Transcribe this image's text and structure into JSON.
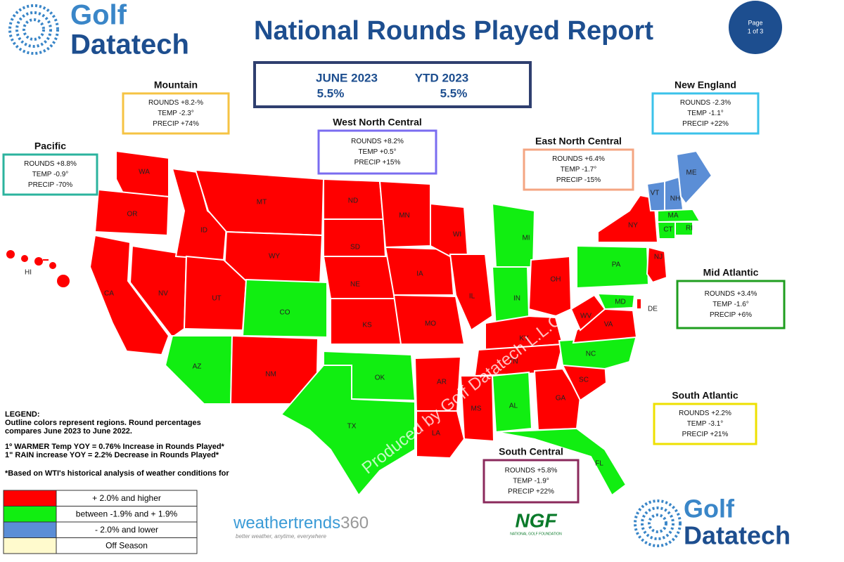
{
  "header": {
    "logo": [
      "Golf",
      "Datatech"
    ],
    "title": "National Rounds Played Report",
    "page": [
      "Page",
      "1 of 3"
    ]
  },
  "summary": {
    "labels": [
      "JUNE 2023",
      "YTD  2023"
    ],
    "values": [
      "5.5%",
      "5.5%"
    ]
  },
  "regions": [
    {
      "name": "Mountain",
      "lines": [
        "ROUNDS +8.2-%",
        "TEMP -2.3°",
        "PRECIP +74%"
      ],
      "color": "#f5c343"
    },
    {
      "name": "Pacific",
      "lines": [
        "ROUNDS +8.8%",
        "TEMP -0.9°",
        "PRECIP -70%"
      ],
      "color": "#2bb39e"
    },
    {
      "name": "West North Central",
      "lines": [
        "ROUNDS +8.2%",
        "TEMP +0.5°",
        "PRECIP +15%"
      ],
      "color": "#7a6cf0"
    },
    {
      "name": "East North Central",
      "lines": [
        "ROUNDS +6.4%",
        "TEMP -1.7°",
        "PRECIP -15%"
      ],
      "color": "#f4a582"
    },
    {
      "name": "New England",
      "lines": [
        "ROUNDS -2.3%",
        "TEMP -1.1°",
        "PRECIP +22%"
      ],
      "color": "#3ac2ea"
    },
    {
      "name": "Mid Atlantic",
      "lines": [
        "ROUNDS +3.4%",
        "TEMP -1.6°",
        "PRECIP +6%"
      ],
      "color": "#1f9e1f"
    },
    {
      "name": "South Atlantic",
      "lines": [
        "ROUNDS +2.2%",
        "TEMP -3.1°",
        "PRECIP +21%"
      ],
      "color": "#eee000"
    },
    {
      "name": "South Central",
      "lines": [
        "ROUNDS +5.8%",
        "TEMP -1.9°",
        "PRECIP +22%"
      ],
      "color": "#8b2a5c"
    }
  ],
  "states": [
    {
      "label": "WA",
      "color": "#ff0000"
    },
    {
      "label": "OR",
      "color": "#ff0000"
    },
    {
      "label": "CA",
      "color": "#ff0000"
    },
    {
      "label": "NV",
      "color": "#ff0000"
    },
    {
      "label": "ID",
      "color": "#ff0000"
    },
    {
      "label": "MT",
      "color": "#ff0000"
    },
    {
      "label": "WY",
      "color": "#ff0000"
    },
    {
      "label": "UT",
      "color": "#ff0000"
    },
    {
      "label": "CO",
      "color": "#11ee11"
    },
    {
      "label": "AZ",
      "color": "#11ee11"
    },
    {
      "label": "NM",
      "color": "#ff0000"
    },
    {
      "label": "ND",
      "color": "#ff0000"
    },
    {
      "label": "SD",
      "color": "#ff0000"
    },
    {
      "label": "NE",
      "color": "#ff0000"
    },
    {
      "label": "KS",
      "color": "#ff0000"
    },
    {
      "label": "MN",
      "color": "#ff0000"
    },
    {
      "label": "IA",
      "color": "#ff0000"
    },
    {
      "label": "MO",
      "color": "#ff0000"
    },
    {
      "label": "WI",
      "color": "#ff0000"
    },
    {
      "label": "IL",
      "color": "#ff0000"
    },
    {
      "label": "MI",
      "color": "#11ee11"
    },
    {
      "label": "IN",
      "color": "#11ee11"
    },
    {
      "label": "OH",
      "color": "#ff0000"
    },
    {
      "label": "KY",
      "color": "#ff0000"
    },
    {
      "label": "TN",
      "color": "#ff0000"
    },
    {
      "label": "OK",
      "color": "#11ee11"
    },
    {
      "label": "TX",
      "color": "#11ee11"
    },
    {
      "label": "AR",
      "color": "#ff0000"
    },
    {
      "label": "LA",
      "color": "#ff0000"
    },
    {
      "label": "MS",
      "color": "#ff0000"
    },
    {
      "label": "AL",
      "color": "#11ee11"
    },
    {
      "label": "GA",
      "color": "#ff0000"
    },
    {
      "label": "FL",
      "color": "#11ee11"
    },
    {
      "label": "SC",
      "color": "#ff0000"
    },
    {
      "label": "NC",
      "color": "#11ee11"
    },
    {
      "label": "VA",
      "color": "#ff0000"
    },
    {
      "label": "WV",
      "color": "#ff0000"
    },
    {
      "label": "MD",
      "color": "#11ee11"
    },
    {
      "label": "DE",
      "color": "#ff0000"
    },
    {
      "label": "PA",
      "color": "#11ee11"
    },
    {
      "label": "NY",
      "color": "#ff0000"
    },
    {
      "label": "NJ",
      "color": "#ff0000"
    },
    {
      "label": "VT",
      "color": "#5b8ed6"
    },
    {
      "label": "NH",
      "color": "#5b8ed6"
    },
    {
      "label": "ME",
      "color": "#5b8ed6"
    },
    {
      "label": "MA",
      "color": "#11ee11"
    },
    {
      "label": "CT",
      "color": "#11ee11"
    },
    {
      "label": "RI",
      "color": "#11ee11"
    },
    {
      "label": "HI",
      "color": "#ff0000"
    }
  ],
  "watermark": "Produced by Golf Datatech L.L.C.",
  "legend": {
    "title": "LEGEND:",
    "lines": [
      "Outline colors represent regions. Round percentages",
      "compares June 2023 to June 2022.",
      "1º WARMER Temp YOY = 0.76% Increase in Rounds Played*",
      "1\" RAIN increase YOY = 2.2% Decrease in Rounds Played*",
      "*Based on WTI's historical analysis of weather conditions for"
    ],
    "rows": [
      {
        "color": "#ff0000",
        "label": "+ 2.0% and higher"
      },
      {
        "color": "#11ee11",
        "label": "between -1.9% and + 1.9%"
      },
      {
        "color": "#5b8ed6",
        "label": "- 2.0% and lower"
      },
      {
        "color": "#fffacd",
        "label": "Off Season"
      }
    ]
  },
  "footer": {
    "weathertrends": [
      "weathertrends",
      "360"
    ],
    "tagline": "better weather, anytime, everywhere",
    "ngf": "NGF",
    "ngf_sub": "NATIONAL GOLF FOUNDATION",
    "logo": [
      "Golf",
      "Datatech"
    ]
  }
}
